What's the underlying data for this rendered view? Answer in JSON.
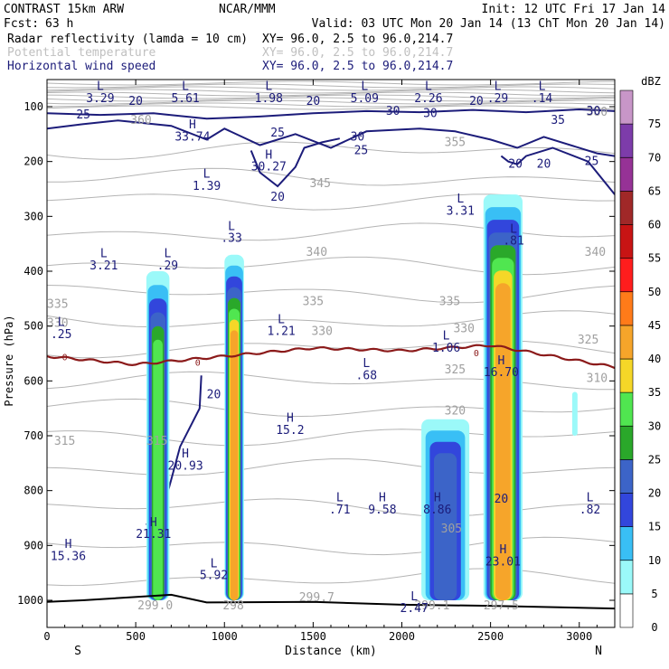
{
  "header": {
    "title": "CONTRAST 15km ARW",
    "center": "NCAR/MMM",
    "init": "Init: 12 UTC Fri 17 Jan 14",
    "fcst_label": "Fcst:",
    "fcst_value": "63 h",
    "valid": "Valid: 03 UTC Mon 20 Jan 14 (13 ChT Mon 20 Jan 14)"
  },
  "fields": [
    {
      "name": "Radar reflectivity (lamda = 10 cm)",
      "xy": "XY=  96.0,  2.5 to  96.0,214.7",
      "color": "#000000"
    },
    {
      "name": "Potential temperature",
      "xy": "XY=  96.0,  2.5 to  96.0,214.7",
      "color": "#c0c0c0"
    },
    {
      "name": "Horizontal wind speed",
      "xy": "XY=  96.0,  2.5 to  96.0,214.7",
      "color": "#1c1c7a"
    }
  ],
  "chart_data": {
    "type": "cross-section",
    "xlabel": "Distance (km)",
    "ylabel": "Pressure (hPa)",
    "xlim": [
      0,
      3200
    ],
    "ylim": [
      1050,
      70
    ],
    "x_ticks": [
      0,
      500,
      1000,
      1500,
      2000,
      2500,
      3000
    ],
    "y_ticks": [
      100,
      200,
      300,
      400,
      500,
      600,
      700,
      800,
      900,
      1000
    ],
    "x_end_labels": {
      "left": "S",
      "right": "N"
    },
    "colorbar": {
      "unit": "dBZ",
      "levels": [
        0,
        5,
        10,
        15,
        20,
        25,
        30,
        35,
        40,
        45,
        50,
        55,
        60,
        65,
        70,
        75
      ],
      "colors": [
        "#ffffff",
        "#9bf9f9",
        "#39bff5",
        "#3246dc",
        "#3c64c8",
        "#2aa82a",
        "#50e650",
        "#f5d728",
        "#f6a52a",
        "#ff7b19",
        "#ff1d1d",
        "#c81414",
        "#a02828",
        "#963296",
        "#7d3caa",
        "#c896c8"
      ]
    },
    "reflectivity_cells": [
      {
        "x": [
          560,
          690
        ],
        "p_top": 400,
        "p_bottom": 1000,
        "max_dbz": 30
      },
      {
        "x": [
          1000,
          1110
        ],
        "p_top": 370,
        "p_bottom": 1000,
        "max_dbz": 40
      },
      {
        "x": [
          2110,
          2380
        ],
        "p_top": 670,
        "p_bottom": 1000,
        "max_dbz": 20
      },
      {
        "x": [
          2460,
          2680
        ],
        "p_top": 260,
        "p_bottom": 1000,
        "max_dbz": 40
      },
      {
        "x": [
          2960,
          2990
        ],
        "p_top": 620,
        "p_bottom": 700,
        "max_dbz": 5
      }
    ],
    "freezing_level": {
      "label": "0",
      "x": [
        0,
        500,
        1000,
        1500,
        2000,
        2500,
        3200
      ],
      "p": [
        555,
        570,
        555,
        540,
        545,
        535,
        575
      ]
    },
    "terrain": {
      "x": [
        0,
        200,
        700,
        900,
        1500,
        2000,
        2500,
        3200
      ],
      "p": [
        1003,
        1000,
        990,
        1004,
        1003,
        1008,
        1010,
        1015
      ]
    },
    "theta_labels": [
      {
        "text": "380",
        "x": 3100,
        "p": 110
      },
      {
        "text": "360",
        "x": 530,
        "p": 125
      },
      {
        "text": "355",
        "x": 2300,
        "p": 165
      },
      {
        "text": "345",
        "x": 1540,
        "p": 240
      },
      {
        "text": "340",
        "x": 1520,
        "p": 365
      },
      {
        "text": "340",
        "x": 3090,
        "p": 365
      },
      {
        "text": "335",
        "x": 60,
        "p": 460
      },
      {
        "text": "335",
        "x": 1500,
        "p": 455
      },
      {
        "text": "335",
        "x": 2270,
        "p": 455
      },
      {
        "text": "330",
        "x": 60,
        "p": 495
      },
      {
        "text": "330",
        "x": 1550,
        "p": 510
      },
      {
        "text": "330",
        "x": 2350,
        "p": 505
      },
      {
        "text": "325",
        "x": 2300,
        "p": 580
      },
      {
        "text": "325",
        "x": 3050,
        "p": 525
      },
      {
        "text": "320",
        "x": 2300,
        "p": 655
      },
      {
        "text": "315",
        "x": 100,
        "p": 710
      },
      {
        "text": "315",
        "x": 620,
        "p": 710
      },
      {
        "text": "310",
        "x": 3100,
        "p": 595
      },
      {
        "text": "305",
        "x": 2280,
        "p": 870
      },
      {
        "text": "299.0",
        "x": 610,
        "p": 1010
      },
      {
        "text": "298",
        "x": 1050,
        "p": 1010
      },
      {
        "text": "299.7",
        "x": 1520,
        "p": 995
      },
      {
        "text": "299.1",
        "x": 2170,
        "p": 1010
      },
      {
        "text": "297.5",
        "x": 2560,
        "p": 1010
      }
    ],
    "wind_labels": [
      {
        "text": "20",
        "x": 500,
        "p": 90
      },
      {
        "text": "20",
        "x": 1500,
        "p": 90
      },
      {
        "text": "20",
        "x": 2420,
        "p": 90
      },
      {
        "text": "25",
        "x": 205,
        "p": 115
      },
      {
        "text": "30",
        "x": 1950,
        "p": 108
      },
      {
        "text": "30",
        "x": 2160,
        "p": 112
      },
      {
        "text": "30",
        "x": 3080,
        "p": 108
      },
      {
        "text": "35",
        "x": 2880,
        "p": 125
      },
      {
        "text": "30",
        "x": 1750,
        "p": 155
      },
      {
        "text": "25",
        "x": 1300,
        "p": 148
      },
      {
        "text": "25",
        "x": 1770,
        "p": 180
      },
      {
        "text": "20",
        "x": 2640,
        "p": 205
      },
      {
        "text": "20",
        "x": 2800,
        "p": 205
      },
      {
        "text": "25",
        "x": 3070,
        "p": 200
      },
      {
        "text": "20",
        "x": 1300,
        "p": 265
      },
      {
        "text": "20",
        "x": 940,
        "p": 625
      },
      {
        "text": "20",
        "x": 2560,
        "p": 815
      }
    ],
    "extrema": [
      {
        "kind": "H",
        "value": "33.74",
        "x": 820,
        "p": 155
      },
      {
        "kind": "H",
        "value": "30.27",
        "x": 1250,
        "p": 210
      },
      {
        "kind": "L",
        "value": "3.29",
        "x": 300,
        "p": 85
      },
      {
        "kind": "L",
        "value": "5.61",
        "x": 780,
        "p": 85
      },
      {
        "kind": "L",
        "value": "1.98",
        "x": 1250,
        "p": 85
      },
      {
        "kind": "L",
        "value": "5.09",
        "x": 1790,
        "p": 85
      },
      {
        "kind": "L",
        "value": ".29",
        "x": 2540,
        "p": 85
      },
      {
        "kind": "L",
        "value": "2.26",
        "x": 2150,
        "p": 85
      },
      {
        "kind": "L",
        "value": ".14",
        "x": 2790,
        "p": 85
      },
      {
        "kind": "L",
        "value": "1.39",
        "x": 900,
        "p": 245
      },
      {
        "kind": "L",
        "value": "3.31",
        "x": 2330,
        "p": 290
      },
      {
        "kind": "L",
        "value": ".33",
        "x": 1040,
        "p": 340
      },
      {
        "kind": "L",
        "value": ".81",
        "x": 2630,
        "p": 345
      },
      {
        "kind": "L",
        "value": "3.21",
        "x": 320,
        "p": 390
      },
      {
        "kind": "L",
        "value": ".29",
        "x": 680,
        "p": 390
      },
      {
        "kind": "L",
        "value": ".25",
        "x": 80,
        "p": 515
      },
      {
        "kind": "L",
        "value": "1.21",
        "x": 1320,
        "p": 510
      },
      {
        "kind": "L",
        "value": "1.06",
        "x": 2250,
        "p": 540
      },
      {
        "kind": "L",
        "value": ".68",
        "x": 1800,
        "p": 590
      },
      {
        "kind": "H",
        "value": "16.70",
        "x": 2560,
        "p": 585
      },
      {
        "kind": "H",
        "value": "15.2",
        "x": 1370,
        "p": 690
      },
      {
        "kind": "H",
        "value": "20.93",
        "x": 780,
        "p": 755
      },
      {
        "kind": "L",
        "value": ".71",
        "x": 1650,
        "p": 835
      },
      {
        "kind": "H",
        "value": "9.58",
        "x": 1890,
        "p": 835
      },
      {
        "kind": "H",
        "value": "8.86",
        "x": 2200,
        "p": 835
      },
      {
        "kind": "L",
        "value": ".82",
        "x": 3060,
        "p": 835
      },
      {
        "kind": "H",
        "value": "21.31",
        "x": 600,
        "p": 880
      },
      {
        "kind": "H",
        "value": "15.36",
        "x": 120,
        "p": 920
      },
      {
        "kind": "H",
        "value": "23.01",
        "x": 2570,
        "p": 930
      },
      {
        "kind": "L",
        "value": "5.92",
        "x": 940,
        "p": 955
      },
      {
        "kind": "L",
        "value": "2.47",
        "x": 2070,
        "p": 1015
      }
    ]
  }
}
